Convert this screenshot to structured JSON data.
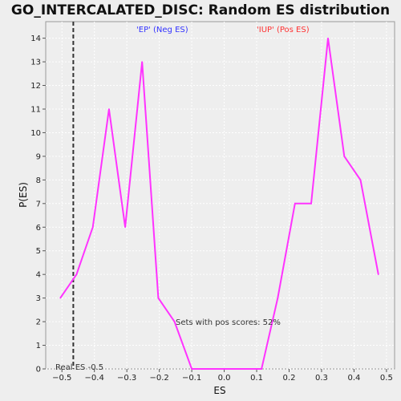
{
  "title": "GO_INTERCALATED_DISC: Random ES distribution",
  "xlabel": "ES",
  "ylabel": "P(ES)",
  "neg_label": "'EP' (Neg ES)",
  "pos_label": "'IUP' (Pos ES)",
  "pos_scores_text": "Sets with pos scores: 52%",
  "real_es_text": "Real ES -0.5",
  "colors": {
    "line": "#ff33ff",
    "neg_label": "#3333ff",
    "pos_label": "#ff3333",
    "real_es_line": "#333333",
    "grid": "#ffffff",
    "plot_bg": "#eeeeee"
  },
  "chart_data": {
    "type": "line",
    "xlim": [
      -0.55,
      0.525
    ],
    "ylim": [
      0,
      14.7
    ],
    "xticks": [
      -0.5,
      -0.4,
      -0.3,
      -0.2,
      -0.1,
      0.0,
      0.1,
      0.2,
      0.3,
      0.4,
      0.5
    ],
    "xtick_labels": [
      "−0.5",
      "−0.4",
      "−0.3",
      "−0.2",
      "−0.1",
      "0.0",
      "0.1",
      "0.2",
      "0.3",
      "0.4",
      "0.5"
    ],
    "yticks": [
      0,
      1,
      2,
      3,
      4,
      5,
      6,
      7,
      8,
      9,
      10,
      11,
      12,
      13,
      14
    ],
    "grid": true,
    "real_es": -0.465,
    "series": [
      {
        "x": [
          -0.505,
          -0.455,
          -0.405,
          -0.355,
          -0.305,
          -0.253,
          -0.203,
          -0.153,
          -0.1,
          -0.05,
          0.0,
          0.05,
          0.115,
          0.165,
          0.218,
          0.268,
          0.32,
          0.37,
          0.42,
          0.475
        ],
        "y": [
          3,
          4,
          6,
          11,
          6,
          13,
          3,
          2,
          0,
          0,
          0,
          0,
          0,
          3,
          7,
          7,
          14,
          9,
          8,
          4
        ]
      }
    ]
  }
}
